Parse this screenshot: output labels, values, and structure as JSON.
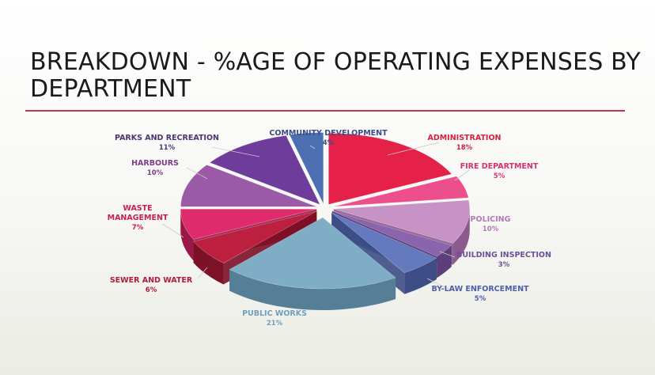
{
  "slide": {
    "title_line1": "BREAKDOWN - %AGE OF OPERATING EXPENSES BY",
    "title_line2": "DEPARTMENT"
  },
  "chart_data": {
    "type": "pie",
    "title": "BREAKDOWN - %AGE OF OPERATING EXPENSES BY DEPARTMENT",
    "style": "3d-exploded",
    "slices": [
      {
        "name": "ADMINISTRATION",
        "label": "18%",
        "value": 18,
        "color": "#e5214a",
        "side": "#a3122f",
        "text_color": "#d4233f"
      },
      {
        "name": "FIRE DEPARTMENT",
        "label": "5%",
        "value": 5,
        "color": "#ec4f8c",
        "side": "#a82a5f",
        "text_color": "#d63273"
      },
      {
        "name": "POLICING",
        "label": "10%",
        "value": 10,
        "color": "#c792c5",
        "side": "#8b5a8e",
        "text_color": "#b17ab6"
      },
      {
        "name": "BUILDING INSPECTION",
        "label": "3%",
        "value": 3,
        "color": "#8a64ad",
        "side": "#5b3f7a",
        "text_color": "#6b4f98"
      },
      {
        "name": "BY-LAW ENFORCEMENT",
        "label": "5%",
        "value": 5,
        "color": "#6479be",
        "side": "#3d4e86",
        "text_color": "#4e5fa8"
      },
      {
        "name": "PUBLIC WORKS",
        "label": "21%",
        "value": 21,
        "color": "#80adc6",
        "side": "#557f97",
        "text_color": "#6f9fbd"
      },
      {
        "name": "SEWER AND WATER",
        "label": "6%",
        "value": 6,
        "color": "#bd1f3f",
        "side": "#7c1127",
        "text_color": "#b31c3a"
      },
      {
        "name": "WASTE\nMANAGEMENT",
        "label": "7%",
        "value": 7,
        "color": "#df2a6c",
        "side": "#991848",
        "text_color": "#c61f57"
      },
      {
        "name": "HARBOURS",
        "label": "10%",
        "value": 10,
        "color": "#9b5aa7",
        "side": "#693872",
        "text_color": "#7f3a8c"
      },
      {
        "name": "PARKS AND RECREATION",
        "label": "11%",
        "value": 11,
        "color": "#6e3c9b",
        "side": "#47236a",
        "text_color": "#4a3673"
      },
      {
        "name": "COMMUNITY DEVELOPMENT",
        "label": "4%",
        "value": 4,
        "color": "#4b6fb0",
        "side": "#2f4779",
        "text_color": "#3a4b86"
      }
    ]
  }
}
